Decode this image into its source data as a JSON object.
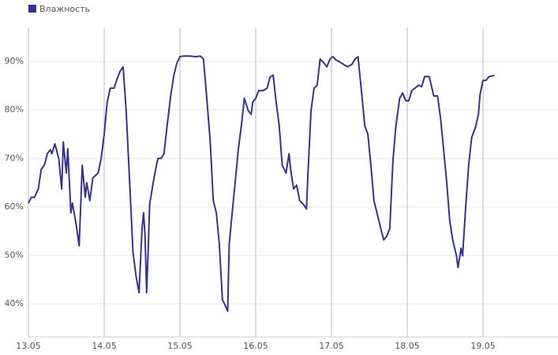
{
  "chart_data": {
    "type": "line",
    "x": [
      13.0,
      13.04,
      13.08,
      13.13,
      13.17,
      13.21,
      13.25,
      13.29,
      13.31,
      13.35,
      13.4,
      13.44,
      13.46,
      13.5,
      13.52,
      13.56,
      13.58,
      13.63,
      13.67,
      13.71,
      13.75,
      13.77,
      13.81,
      13.85,
      13.92,
      13.96,
      14.0,
      14.04,
      14.08,
      14.13,
      14.17,
      14.21,
      14.25,
      14.29,
      14.33,
      14.38,
      14.42,
      14.46,
      14.48,
      14.5,
      14.52,
      14.54,
      14.56,
      14.58,
      14.6,
      14.65,
      14.69,
      14.71,
      14.75,
      14.79,
      14.83,
      14.88,
      14.92,
      14.96,
      15.0,
      15.04,
      15.13,
      15.21,
      15.27,
      15.31,
      15.35,
      15.4,
      15.44,
      15.48,
      15.52,
      15.56,
      15.6,
      15.63,
      15.65,
      15.69,
      15.73,
      15.77,
      15.81,
      15.85,
      15.9,
      15.94,
      15.96,
      16.0,
      16.04,
      16.1,
      16.15,
      16.19,
      16.23,
      16.27,
      16.31,
      16.35,
      16.4,
      16.44,
      16.46,
      16.5,
      16.54,
      16.58,
      16.63,
      16.67,
      16.69,
      16.73,
      16.77,
      16.81,
      16.85,
      16.9,
      16.94,
      16.98,
      17.02,
      17.06,
      17.13,
      17.21,
      17.27,
      17.31,
      17.35,
      17.4,
      17.44,
      17.48,
      17.52,
      17.56,
      17.6,
      17.65,
      17.69,
      17.73,
      17.77,
      17.81,
      17.85,
      17.9,
      17.94,
      17.98,
      18.02,
      18.06,
      18.15,
      18.19,
      18.23,
      18.29,
      18.35,
      18.4,
      18.44,
      18.48,
      18.52,
      18.56,
      18.6,
      18.65,
      18.67,
      18.71,
      18.73,
      18.77,
      18.81,
      18.85,
      18.9,
      18.94,
      18.96,
      19.0,
      19.04,
      19.08,
      19.15
    ],
    "series": [
      {
        "name": "Влажность",
        "color": "#35348c",
        "values": [
          60.8,
          62,
          62,
          63.7,
          67.8,
          68.6,
          71,
          71.8,
          71,
          73,
          70,
          63.7,
          73.4,
          67,
          72,
          58.8,
          60.8,
          56.4,
          52,
          68.6,
          62,
          65,
          61.3,
          66,
          67,
          70,
          75,
          81.6,
          84.5,
          84.5,
          86.4,
          88,
          88.9,
          80,
          67,
          50.7,
          45.8,
          42.3,
          49,
          55.6,
          58.8,
          54,
          42.3,
          50.7,
          60.5,
          65.3,
          68.6,
          70,
          70,
          71,
          76.7,
          83.2,
          87.2,
          89.7,
          91,
          91.1,
          91.1,
          91,
          91.1,
          90.5,
          83.2,
          73.4,
          61.3,
          58.8,
          52.3,
          40.9,
          39.6,
          38.5,
          52.3,
          58.8,
          65.3,
          71.8,
          76.7,
          82.4,
          79.9,
          79.1,
          81.6,
          82.4,
          84,
          84,
          84.5,
          86.8,
          87.2,
          81.6,
          76.7,
          68.6,
          67,
          71,
          67.8,
          63.7,
          64.5,
          61.3,
          60.5,
          59.6,
          67,
          79.9,
          84.5,
          85.1,
          90.5,
          89.7,
          88.9,
          90.5,
          91,
          90.3,
          89.7,
          88.9,
          89.4,
          90.5,
          91,
          83.2,
          76.7,
          75,
          68.6,
          61.3,
          58.8,
          55.6,
          53.2,
          54,
          55.6,
          69.4,
          76.7,
          82.4,
          83.5,
          81.9,
          81.9,
          84,
          85.1,
          84.8,
          86.9,
          86.9,
          82.9,
          82.9,
          78.3,
          71.8,
          65.3,
          57.2,
          53.2,
          49.9,
          47.5,
          51.5,
          49.9,
          59.6,
          68.6,
          74.3,
          76.4,
          79.1,
          83.2,
          86.1,
          86.1,
          86.9,
          87.1
        ]
      }
    ],
    "xlim": [
      13,
      20
    ],
    "xticks": [
      {
        "value": 13,
        "label": "13.05"
      },
      {
        "value": 14,
        "label": "14.05"
      },
      {
        "value": 15,
        "label": "15.05"
      },
      {
        "value": 16,
        "label": "16.05"
      },
      {
        "value": 17,
        "label": "17.05"
      },
      {
        "value": 18,
        "label": "18.05"
      },
      {
        "value": 19,
        "label": "19.05"
      }
    ],
    "ylim": [
      33.2,
      97
    ],
    "yticks": [
      {
        "value": 40,
        "label": "40%"
      },
      {
        "value": 50,
        "label": "50%"
      },
      {
        "value": 60,
        "label": "60%"
      },
      {
        "value": 70,
        "label": "70%"
      },
      {
        "value": 80,
        "label": "80%"
      },
      {
        "value": 90,
        "label": "90%"
      }
    ],
    "grid": true,
    "legend": "top-left"
  }
}
